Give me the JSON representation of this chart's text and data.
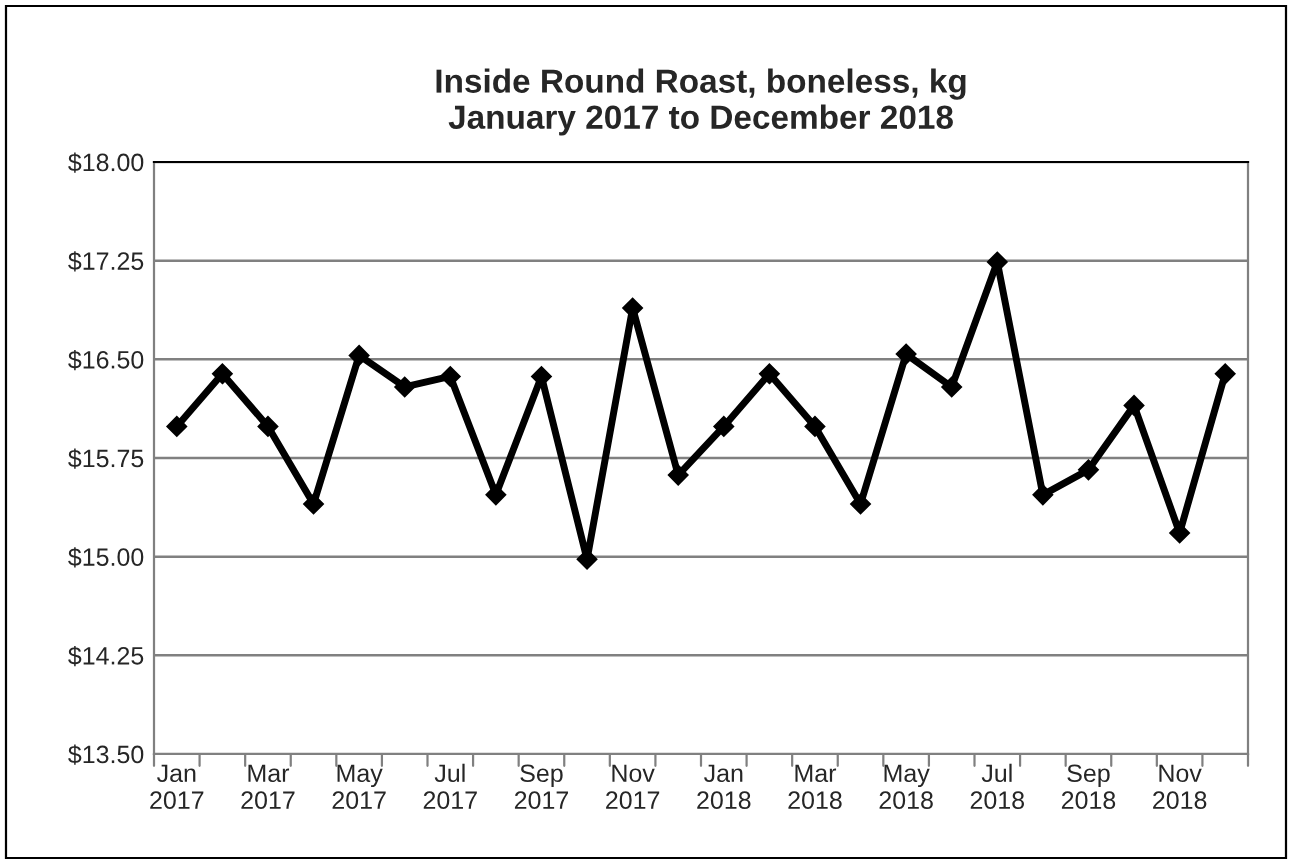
{
  "chart_data": {
    "type": "line",
    "title": "Inside Round Roast, boneless, kg\nJanuary 2017 to December 2018",
    "categories": [
      "Jan\n2017",
      null,
      "Mar\n2017",
      null,
      "May\n2017",
      null,
      "Jul\n2017",
      null,
      "Sep\n2017",
      null,
      "Nov\n2017",
      null,
      "Jan\n2018",
      null,
      "Mar\n2018",
      null,
      "May\n2018",
      null,
      "Jul\n2018",
      null,
      "Sep\n2018",
      null,
      "Nov\n2018",
      null
    ],
    "series": [
      {
        "color": "#000000",
        "values": [
          15.99,
          16.39,
          15.99,
          15.4,
          16.53,
          16.29,
          16.37,
          15.47,
          16.37,
          14.98,
          16.89,
          15.62,
          15.99,
          16.39,
          15.99,
          15.4,
          16.54,
          16.29,
          17.24,
          15.47,
          15.66,
          16.15,
          15.18,
          16.39
        ]
      }
    ],
    "ylim": [
      13.5,
      18.0
    ],
    "yticks": [
      {
        "value": 13.5,
        "label": "$13.50"
      },
      {
        "value": 14.25,
        "label": "$14.25"
      },
      {
        "value": 15.0,
        "label": "$15.00"
      },
      {
        "value": 15.75,
        "label": "$15.75"
      },
      {
        "value": 16.5,
        "label": "$16.50"
      },
      {
        "value": 17.25,
        "label": "$17.25"
      },
      {
        "value": 18.0,
        "label": "$18.00"
      }
    ],
    "grid": "y",
    "marker": "diamond",
    "line_style": "solid"
  }
}
